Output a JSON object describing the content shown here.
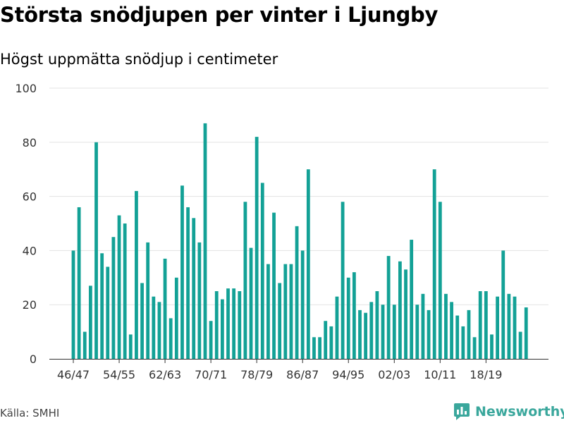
{
  "title": "Största snödjupen per vinter i Ljungby",
  "subtitle": "Högst uppmätta snödjup i centimeter",
  "source": "Källa: SMHI",
  "brand": {
    "name": "Newsworthy",
    "icon": "newsworthy-logo-icon",
    "color": "#3aa79c"
  },
  "colors": {
    "bar": "#13a196",
    "grid": "#e3e3e3",
    "axis": "#333333"
  },
  "chart_data": {
    "type": "bar",
    "title": "Största snödjupen per vinter i Ljungby",
    "subtitle": "Högst uppmätta snödjup i centimeter",
    "xlabel": "",
    "ylabel": "",
    "ylim": [
      0,
      100
    ],
    "yticks": [
      0,
      20,
      40,
      60,
      80,
      100
    ],
    "grid": true,
    "legend": "none",
    "categories": [
      "46/47",
      "47/48",
      "48/49",
      "49/50",
      "50/51",
      "51/52",
      "52/53",
      "53/54",
      "54/55",
      "55/56",
      "56/57",
      "57/58",
      "58/59",
      "59/60",
      "60/61",
      "61/62",
      "62/63",
      "63/64",
      "64/65",
      "65/66",
      "66/67",
      "67/68",
      "68/69",
      "69/70",
      "70/71",
      "71/72",
      "72/73",
      "73/74",
      "74/75",
      "75/76",
      "76/77",
      "77/78",
      "78/79",
      "79/80",
      "80/81",
      "81/82",
      "82/83",
      "83/84",
      "84/85",
      "85/86",
      "86/87",
      "87/88",
      "88/89",
      "89/90",
      "90/91",
      "91/92",
      "92/93",
      "93/94",
      "94/95",
      "95/96",
      "96/97",
      "97/98",
      "98/99",
      "99/00",
      "00/01",
      "01/02",
      "02/03",
      "03/04",
      "04/05",
      "05/06",
      "06/07",
      "07/08",
      "08/09",
      "09/10",
      "10/11",
      "11/12",
      "12/13",
      "13/14",
      "14/15",
      "15/16",
      "16/17",
      "17/18",
      "18/19",
      "19/20",
      "20/21",
      "21/22",
      "22/23",
      "23/24",
      "24/25",
      "25/26"
    ],
    "xticklabels": [
      "46/47",
      "54/55",
      "62/63",
      "70/71",
      "78/79",
      "86/87",
      "94/95",
      "02/03",
      "10/11",
      "18/19"
    ],
    "values": [
      40,
      56,
      10,
      27,
      80,
      39,
      34,
      45,
      53,
      50,
      9,
      62,
      28,
      43,
      23,
      21,
      37,
      15,
      30,
      64,
      56,
      52,
      43,
      87,
      14,
      25,
      22,
      26,
      26,
      25,
      58,
      41,
      82,
      65,
      35,
      54,
      28,
      35,
      35,
      49,
      40,
      70,
      8,
      8,
      14,
      12,
      23,
      58,
      30,
      32,
      18,
      17,
      21,
      25,
      20,
      38,
      20,
      36,
      33,
      44,
      20,
      24,
      18,
      70,
      58,
      24,
      21,
      16,
      12,
      18,
      8,
      25,
      25,
      9,
      23,
      40,
      24,
      23,
      10,
      19
    ]
  }
}
